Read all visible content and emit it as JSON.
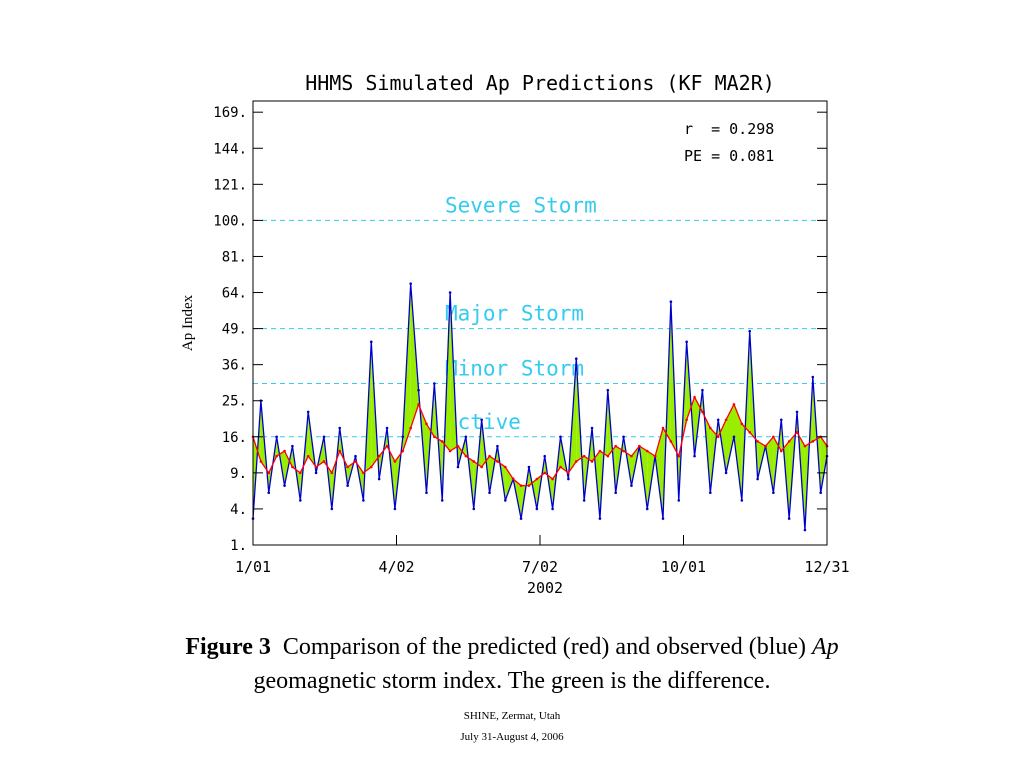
{
  "chart_data": {
    "type": "line",
    "title": "HHMS Simulated Ap Predictions (KF MA2R)",
    "ylabel": "Ap Index",
    "xlabel": "2002",
    "yscale": "sqrt",
    "ylim": [
      1,
      169
    ],
    "yticks": [
      "169.",
      "144.",
      "121.",
      "100.",
      "81.",
      "64.",
      "49.",
      "36.",
      "25.",
      "16.",
      "9.",
      "4.",
      "1."
    ],
    "ytick_values": [
      169,
      144,
      121,
      100,
      81,
      64,
      49,
      36,
      25,
      16,
      9,
      4,
      1
    ],
    "xticks": [
      "1/01",
      "4/02",
      "7/02",
      "10/01",
      "12/31"
    ],
    "xtick_values": [
      "2002-01-01",
      "2002-04-02",
      "2002-07-02",
      "2002-10-01",
      "2002-12-31"
    ],
    "stats": {
      "r": "r  = 0.298",
      "pe": "PE = 0.081"
    },
    "thresholds": [
      {
        "label": "Severe Storm",
        "value": 100
      },
      {
        "label": "Major Storm",
        "value": 49
      },
      {
        "label": "Minor Storm",
        "value": 30
      },
      {
        "label": "Active",
        "value": 16
      }
    ],
    "series": [
      {
        "name": "predicted",
        "color": "#ff0000",
        "x": [
          "2002-01-01",
          "2002-01-06",
          "2002-01-11",
          "2002-01-16",
          "2002-01-21",
          "2002-01-26",
          "2002-01-31",
          "2002-02-05",
          "2002-02-10",
          "2002-02-15",
          "2002-02-20",
          "2002-02-25",
          "2002-03-02",
          "2002-03-07",
          "2002-03-12",
          "2002-03-17",
          "2002-03-22",
          "2002-03-27",
          "2002-04-01",
          "2002-04-06",
          "2002-04-11",
          "2002-04-16",
          "2002-04-21",
          "2002-04-26",
          "2002-05-01",
          "2002-05-06",
          "2002-05-11",
          "2002-05-16",
          "2002-05-21",
          "2002-05-26",
          "2002-05-31",
          "2002-06-05",
          "2002-06-10",
          "2002-06-15",
          "2002-06-20",
          "2002-06-25",
          "2002-06-30",
          "2002-07-05",
          "2002-07-10",
          "2002-07-15",
          "2002-07-20",
          "2002-07-25",
          "2002-07-30",
          "2002-08-04",
          "2002-08-09",
          "2002-08-14",
          "2002-08-19",
          "2002-08-24",
          "2002-08-29",
          "2002-09-03",
          "2002-09-08",
          "2002-09-13",
          "2002-09-18",
          "2002-09-23",
          "2002-09-28",
          "2002-10-03",
          "2002-10-08",
          "2002-10-13",
          "2002-10-18",
          "2002-10-23",
          "2002-10-28",
          "2002-11-02",
          "2002-11-07",
          "2002-11-12",
          "2002-11-17",
          "2002-11-22",
          "2002-11-27",
          "2002-12-02",
          "2002-12-07",
          "2002-12-12",
          "2002-12-17",
          "2002-12-22",
          "2002-12-27",
          "2002-12-31"
        ],
        "values": [
          16,
          11,
          9,
          12,
          13,
          10,
          9,
          12,
          10,
          11,
          9,
          13,
          10,
          11,
          9,
          10,
          12,
          14,
          11,
          13,
          18,
          24,
          19,
          16,
          15,
          13,
          14,
          12,
          11,
          10,
          12,
          11,
          10,
          8,
          7,
          7,
          8,
          9,
          8,
          10,
          9,
          11,
          12,
          11,
          13,
          12,
          14,
          13,
          12,
          14,
          13,
          12,
          18,
          15,
          12,
          20,
          26,
          22,
          18,
          16,
          20,
          24,
          19,
          17,
          15,
          14,
          16,
          13,
          15,
          17,
          14,
          15,
          16,
          14
        ]
      },
      {
        "name": "observed",
        "color": "#0000cc",
        "x": [
          "2002-01-01",
          "2002-01-06",
          "2002-01-11",
          "2002-01-16",
          "2002-01-21",
          "2002-01-26",
          "2002-01-31",
          "2002-02-05",
          "2002-02-10",
          "2002-02-15",
          "2002-02-20",
          "2002-02-25",
          "2002-03-02",
          "2002-03-07",
          "2002-03-12",
          "2002-03-17",
          "2002-03-22",
          "2002-03-27",
          "2002-04-01",
          "2002-04-06",
          "2002-04-11",
          "2002-04-16",
          "2002-04-21",
          "2002-04-26",
          "2002-05-01",
          "2002-05-06",
          "2002-05-11",
          "2002-05-16",
          "2002-05-21",
          "2002-05-26",
          "2002-05-31",
          "2002-06-05",
          "2002-06-10",
          "2002-06-15",
          "2002-06-20",
          "2002-06-25",
          "2002-06-30",
          "2002-07-05",
          "2002-07-10",
          "2002-07-15",
          "2002-07-20",
          "2002-07-25",
          "2002-07-30",
          "2002-08-04",
          "2002-08-09",
          "2002-08-14",
          "2002-08-19",
          "2002-08-24",
          "2002-08-29",
          "2002-09-03",
          "2002-09-08",
          "2002-09-13",
          "2002-09-18",
          "2002-09-23",
          "2002-09-28",
          "2002-10-03",
          "2002-10-08",
          "2002-10-13",
          "2002-10-18",
          "2002-10-23",
          "2002-10-28",
          "2002-11-02",
          "2002-11-07",
          "2002-11-12",
          "2002-11-17",
          "2002-11-22",
          "2002-11-27",
          "2002-12-02",
          "2002-12-07",
          "2002-12-12",
          "2002-12-17",
          "2002-12-22",
          "2002-12-27",
          "2002-12-31"
        ],
        "values": [
          3,
          25,
          6,
          16,
          7,
          14,
          5,
          22,
          9,
          16,
          4,
          18,
          7,
          12,
          5,
          44,
          8,
          18,
          4,
          16,
          68,
          28,
          6,
          30,
          5,
          64,
          10,
          16,
          4,
          20,
          6,
          14,
          5,
          8,
          3,
          10,
          4,
          12,
          4,
          16,
          8,
          38,
          5,
          18,
          3,
          28,
          6,
          16,
          7,
          14,
          4,
          12,
          3,
          60,
          5,
          44,
          12,
          28,
          6,
          20,
          9,
          16,
          5,
          48,
          8,
          14,
          6,
          20,
          3,
          22,
          2,
          32,
          6,
          12
        ]
      }
    ],
    "difference": {
      "label": "difference",
      "color": "#99ee00"
    }
  },
  "caption": {
    "label": "Figure 3",
    "text_before": "Comparison of the predicted (red) and observed (blue)",
    "italic": "Ap",
    "line2": "geomagnetic storm index.  The green is the difference."
  },
  "footer": {
    "line1": "SHINE, Zermat, Utah",
    "line2": "July 31-August 4, 2006"
  }
}
